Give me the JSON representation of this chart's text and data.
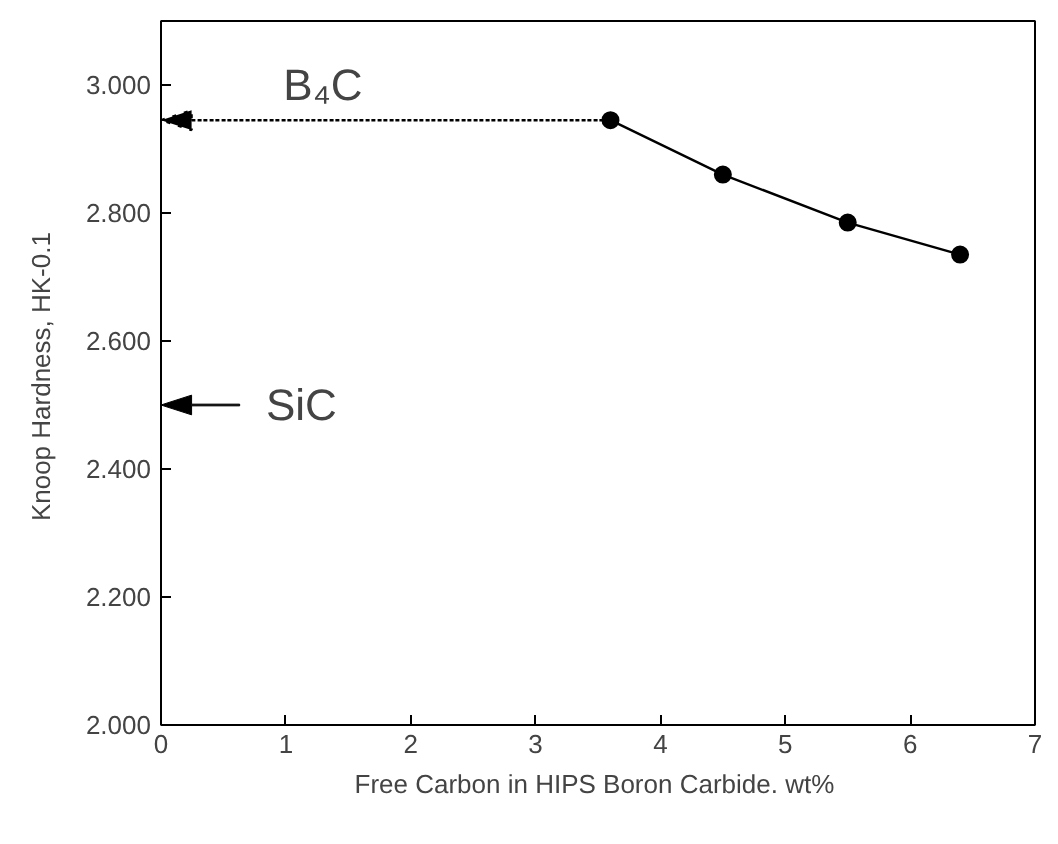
{
  "chart_data": {
    "type": "line",
    "xlabel": "Free  Carbon in HIPS Boron Carbide. wt%",
    "ylabel": "Knoop Hardness,  HK-0.1",
    "x": [
      3.6,
      4.5,
      5.5,
      6.4
    ],
    "series": [
      {
        "color": "#000000",
        "values": [
          2.945,
          2.86,
          2.785,
          2.735
        ]
      }
    ],
    "xlim": [
      0,
      7
    ],
    "xticks": [
      0,
      1,
      2,
      3,
      4,
      5,
      6,
      7
    ],
    "ylim": [
      2,
      3.1
    ],
    "yticks": [
      {
        "value": 2,
        "label": "2.000"
      },
      {
        "value": 2.2,
        "label": "2.200"
      },
      {
        "value": 2.4,
        "label": "2.400"
      },
      {
        "value": 2.6,
        "label": "2.600"
      },
      {
        "value": 2.8,
        "label": "2.800"
      },
      {
        "value": 3,
        "label": "3.000"
      }
    ],
    "ref_lines": [
      {
        "axis": "y",
        "value": 2.945,
        "label": "B₄C",
        "line_style": "dotted"
      },
      {
        "axis": "y",
        "value": 2.5,
        "label": "SiC",
        "line_style": "solid"
      }
    ],
    "marker": "circle",
    "line_style": "solid",
    "grid": false
  }
}
